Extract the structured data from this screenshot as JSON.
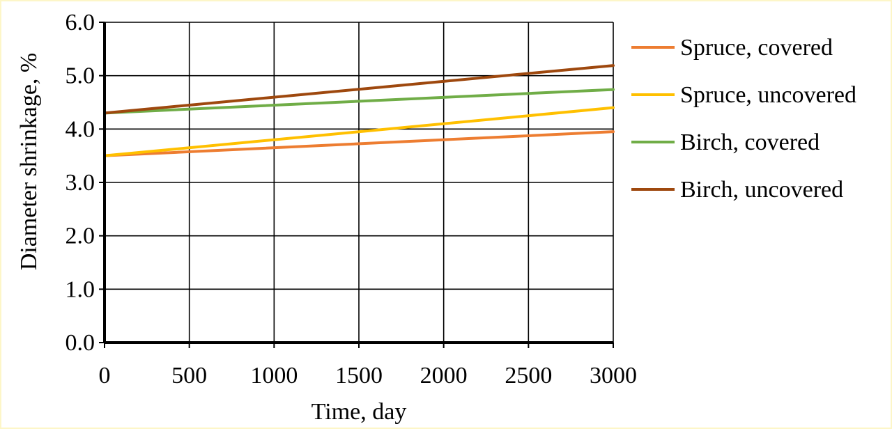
{
  "chart_data": {
    "type": "line",
    "title": "",
    "xlabel": "Time, day",
    "ylabel": "Diameter shrinkage, %",
    "xlim": [
      0,
      3000
    ],
    "ylim": [
      0,
      6
    ],
    "x_ticks": [
      "0",
      "500",
      "1000",
      "1500",
      "2000",
      "2500",
      "3000"
    ],
    "y_ticks": [
      "0.0",
      "1.0",
      "2.0",
      "3.0",
      "4.0",
      "5.0",
      "6.0"
    ],
    "grid": true,
    "legend_position": "right",
    "x": [
      0,
      3000
    ],
    "series": [
      {
        "name": "Spruce, covered",
        "color": "#ed7d31",
        "values": [
          3.5,
          3.95
        ]
      },
      {
        "name": "Spruce, uncovered",
        "color": "#ffc000",
        "values": [
          3.5,
          4.4
        ]
      },
      {
        "name": "Birch, covered",
        "color": "#70ad47",
        "values": [
          4.3,
          4.74
        ]
      },
      {
        "name": "Birch, uncovered",
        "color": "#9e480e",
        "values": [
          4.3,
          5.19
        ]
      }
    ]
  }
}
